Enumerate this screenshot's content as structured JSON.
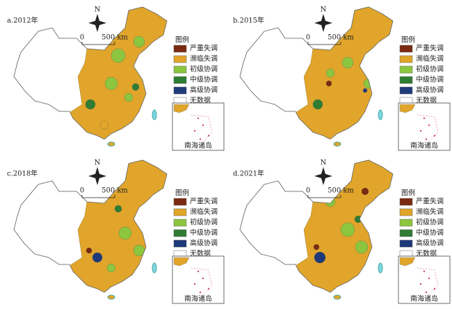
{
  "panels": [
    {
      "title": "a.2012年",
      "inset": "南海诸岛"
    },
    {
      "title": "b.2015年",
      "inset": "南海诸岛"
    },
    {
      "title": "c.2018年",
      "inset": "南海诸岛"
    },
    {
      "title": "d.2021年",
      "inset": "南海诸岛"
    }
  ],
  "legend": {
    "title": "图例",
    "items": [
      {
        "label": "严重失调",
        "color": "#7a2a10"
      },
      {
        "label": "濒临失调",
        "color": "#e0a52a"
      },
      {
        "label": "初级协调",
        "color": "#8cc63f"
      },
      {
        "label": "中级协调",
        "color": "#2e7d32"
      },
      {
        "label": "高级协调",
        "color": "#1f3a7a"
      },
      {
        "label": "无数据",
        "color": "#ffffff"
      }
    ]
  },
  "north": "N",
  "scale": {
    "start": "0",
    "end": "500 km"
  }
}
